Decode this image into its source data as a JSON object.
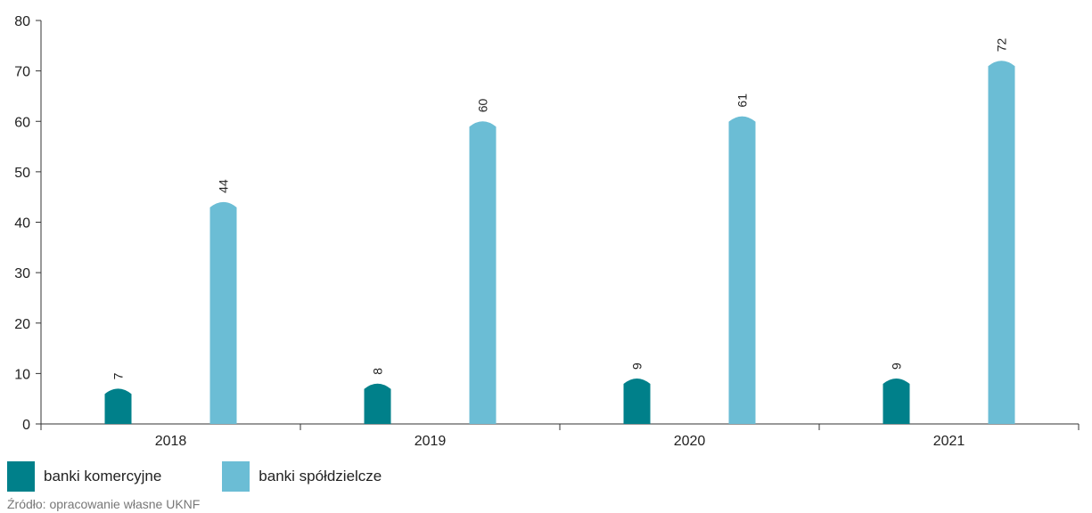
{
  "chart_data": {
    "type": "bar",
    "categories": [
      "2018",
      "2019",
      "2020",
      "2021"
    ],
    "series": [
      {
        "name": "banki komercyjne",
        "values": [
          7,
          8,
          9,
          9
        ],
        "color": "#00808A"
      },
      {
        "name": "banki spółdzielcze",
        "values": [
          44,
          60,
          61,
          72
        ],
        "color": "#6BBDD5"
      }
    ],
    "ylim": [
      0,
      80
    ],
    "yticks": [
      0,
      10,
      20,
      30,
      40,
      50,
      60,
      70,
      80
    ],
    "grid": false,
    "legend_position": "bottom-left",
    "data_labels": "rotated-vertical",
    "title": "",
    "xlabel": "",
    "ylabel": ""
  },
  "legend": [
    {
      "label": "banki komercyjne",
      "color": "#00808A"
    },
    {
      "label": "banki spółdzielcze",
      "color": "#6BBDD5"
    }
  ],
  "source": "Źródło: opracowanie własne UKNF"
}
